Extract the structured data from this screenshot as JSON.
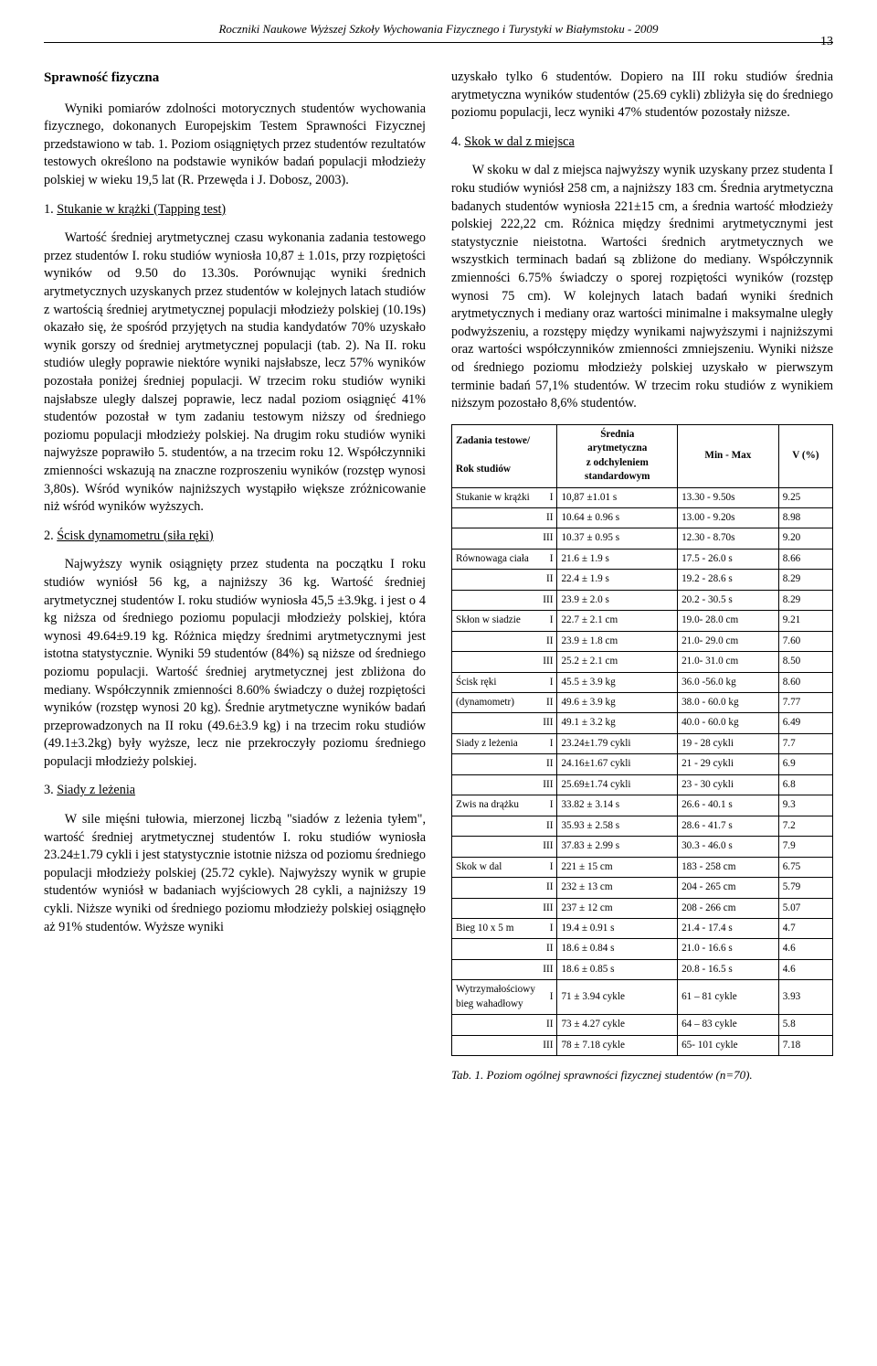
{
  "header": {
    "journal": "Roczniki Naukowe Wyższej Szkoły Wychowania Fizycznego i Turystyki w Białymstoku - 2009",
    "page_number": "13"
  },
  "left": {
    "title": "Sprawność fizyczna",
    "intro": "Wyniki pomiarów zdolności motorycznych studentów wychowania fizycznego, dokonanych Europejskim Testem Sprawności Fizycznej przedstawiono w tab. 1. Poziom osiągniętych przez studentów rezultatów testowych określono na podstawie wyników badań populacji młodzieży polskiej w wieku 19,5 lat (R. Przewęda i J. Dobosz, 2003).",
    "s1_num": "1.",
    "s1_title": "Stukanie w krążki (Tapping test)",
    "s1_body": "Wartość średniej arytmetycznej czasu wykonania zadania testowego przez studentów I. roku studiów wyniosła 10,87 ± 1.01s, przy rozpiętości wyników od 9.50 do 13.30s. Porównując wyniki średnich arytmetycznych uzyskanych przez studentów w kolejnych latach studiów z wartością średniej arytmetycznej populacji młodzieży polskiej (10.19s) okazało się, że spośród przyjętych na studia kandydatów 70% uzyskało wynik gorszy od średniej arytmetycznej populacji (tab. 2). Na II. roku studiów uległy poprawie niektóre wyniki najsłabsze, lecz 57% wyników pozostała poniżej średniej populacji. W trzecim roku studiów wyniki najsłabsze uległy dalszej poprawie, lecz nadal poziom osiągnięć 41% studentów pozostał w tym zadaniu testowym niższy od średniego poziomu populacji młodzieży polskiej. Na drugim roku studiów wyniki najwyższe poprawiło 5. studentów, a na trzecim roku 12. Współczynniki zmienności wskazują na znaczne rozproszeniu wyników (rozstęp wynosi 3,80s). Wśród wyników najniższych wystąpiło większe zróżnicowanie niż wśród wyników wyższych.",
    "s2_num": "2.",
    "s2_title": "Ścisk dynamometru (siła ręki)",
    "s2_body": "Najwyższy wynik osiągnięty przez studenta na początku I roku studiów wyniósł 56 kg, a najniższy 36 kg. Wartość średniej arytmetycznej studentów I. roku studiów wyniosła 45,5 ±3.9kg. i jest o 4 kg niższa od średniego poziomu populacji młodzieży polskiej, która wynosi 49.64±9.19 kg. Różnica między średnimi arytmetycznymi jest istotna statystycznie. Wyniki 59 studentów (84%) są niższe od średniego poziomu populacji. Wartość średniej arytmetycznej jest zbliżona do mediany. Współczynnik zmienności 8.60% świadczy o dużej rozpiętości wyników (rozstęp wynosi 20 kg). Średnie arytmetyczne wyników badań przeprowadzonych na II roku (49.6±3.9 kg) i na trzecim roku studiów (49.1±3.2kg) były wyższe, lecz nie przekroczyły poziomu średniego populacji młodzieży polskiej.",
    "s3_num": "3.",
    "s3_title": "Siady z leżenia",
    "s3_body": "W sile mięśni tułowia, mierzonej liczbą \"siadów z leżenia tyłem\", wartość średniej arytmetycznej studentów I. roku studiów wyniosła 23.24±1.79 cykli i jest statystycznie istotnie niższa od poziomu średniego populacji młodzieży polskiej (25.72 cykle). Najwyższy wynik w grupie studentów wyniósł w badaniach wyjściowych 28 cykli, a najniższy 19 cykli. Niższe wyniki od średniego poziomu młodzieży polskiej osiągnęło aż 91% studentów. Wyższe wyniki"
  },
  "right": {
    "cont": "uzyskało tylko 6 studentów. Dopiero na III roku studiów średnia arytmetyczna wyników studentów (25.69 cykli) zbliżyła się do średniego poziomu populacji, lecz wyniki 47% studentów pozostały niższe.",
    "s4_num": "4.",
    "s4_title": "Skok w dal z miejsca",
    "s4_body": "W skoku w dal z miejsca najwyższy wynik uzyskany przez studenta I roku studiów wyniósł 258 cm, a najniższy 183 cm. Średnia arytmetyczna badanych studentów wyniosła 221±15 cm, a średnia wartość młodzieży polskiej 222,22 cm. Różnica między średnimi arytmetycznymi jest statystycznie nieistotna. Wartości średnich arytmetycznych we wszystkich terminach badań są zbliżone do mediany. Współczynnik zmienności 6.75% świadczy o sporej rozpiętości wyników (rozstęp wynosi 75 cm). W kolejnych latach badań wyniki średnich arytmetycznych i mediany oraz wartości minimalne i maksymalne uległy podwyższeniu, a rozstępy między wynikami najwyższymi i najniższymi oraz wartości współczynników zmienności zmniejszeniu. Wyniki niższe od średniego poziomu młodzieży polskiej uzyskało w pierwszym terminie badań 57,1% studentów. W trzecim roku studiów z wynikiem niższym pozostało 8,6% studentów.",
    "table_caption": "Tab. 1. Poziom ogólnej sprawności fizycznej studentów (n=70)."
  },
  "table": {
    "head": {
      "c1a": "Zadania testowe/",
      "c1b": "Rok studiów",
      "c2a": "Średnia",
      "c2b": "arytmetyczna",
      "c2c": "z odchyleniem",
      "c2d": "standardowym",
      "c3": "Min - Max",
      "c4": "V (%)"
    },
    "rows": [
      {
        "g": "Stukanie w krążki",
        "y": "I",
        "m": "10,87 ±1.01 s",
        "mm": "13.30 - 9.50s",
        "v": "9.25"
      },
      {
        "g": "",
        "y": "II",
        "m": "10.64 ± 0.96 s",
        "mm": "13.00 - 9.20s",
        "v": "8.98"
      },
      {
        "g": "",
        "y": "III",
        "m": "10.37 ± 0.95 s",
        "mm": "12.30 - 8.70s",
        "v": "9.20"
      },
      {
        "g": "Równowaga ciała",
        "y": "I",
        "m": "21.6 ± 1.9 s",
        "mm": "17.5 - 26.0 s",
        "v": "8.66"
      },
      {
        "g": "",
        "y": "II",
        "m": "22.4 ± 1.9 s",
        "mm": "19.2 - 28.6 s",
        "v": "8.29"
      },
      {
        "g": "",
        "y": "III",
        "m": "23.9 ± 2.0 s",
        "mm": "20.2 - 30.5 s",
        "v": "8.29"
      },
      {
        "g": "Skłon w siadzie",
        "y": "I",
        "m": "22.7 ± 2.1 cm",
        "mm": "19.0- 28.0 cm",
        "v": "9.21"
      },
      {
        "g": "",
        "y": "II",
        "m": "23.9 ± 1.8 cm",
        "mm": "21.0- 29.0 cm",
        "v": "7.60"
      },
      {
        "g": "",
        "y": "III",
        "m": "25.2 ± 2.1 cm",
        "mm": "21.0- 31.0 cm",
        "v": "8.50"
      },
      {
        "g": "Ścisk ręki",
        "y": "I",
        "m": "45.5 ± 3.9 kg",
        "mm": "36.0 -56.0 kg",
        "v": "8.60"
      },
      {
        "g": "    (dynamometr)",
        "y": "II",
        "m": "49.6 ± 3.9 kg",
        "mm": "38.0 - 60.0 kg",
        "v": "7.77"
      },
      {
        "g": "",
        "y": "III",
        "m": "49.1 ± 3.2 kg",
        "mm": "40.0 - 60.0 kg",
        "v": "6.49"
      },
      {
        "g": "Siady z leżenia",
        "y": "I",
        "m": "23.24±1.79 cykli",
        "mm": "19 - 28 cykli",
        "v": "7.7"
      },
      {
        "g": "",
        "y": "II",
        "m": "24.16±1.67 cykli",
        "mm": "21 - 29 cykli",
        "v": "6.9"
      },
      {
        "g": "",
        "y": "III",
        "m": "25.69±1.74 cykli",
        "mm": "23 - 30 cykli",
        "v": "6.8"
      },
      {
        "g": "Zwis na drążku",
        "y": "I",
        "m": "33.82 ± 3.14 s",
        "mm": "26.6 - 40.1 s",
        "v": "9.3"
      },
      {
        "g": "",
        "y": "II",
        "m": "35.93 ± 2.58 s",
        "mm": "28.6 - 41.7 s",
        "v": "7.2"
      },
      {
        "g": "",
        "y": "III",
        "m": "37.83 ± 2.99 s",
        "mm": "30.3 - 46.0 s",
        "v": "7.9"
      },
      {
        "g": "Skok w dal",
        "y": "I",
        "m": "221 ± 15 cm",
        "mm": "183 - 258 cm",
        "v": "6.75"
      },
      {
        "g": "",
        "y": "II",
        "m": "232 ± 13 cm",
        "mm": "204 - 265 cm",
        "v": "5.79"
      },
      {
        "g": "",
        "y": "III",
        "m": "237 ± 12 cm",
        "mm": "208 - 266 cm",
        "v": "5.07"
      },
      {
        "g": "Bieg 10 x 5 m",
        "y": "I",
        "m": "19.4 ± 0.91 s",
        "mm": "21.4 - 17.4 s",
        "v": "4.7"
      },
      {
        "g": "",
        "y": "II",
        "m": "18.6 ± 0.84 s",
        "mm": "21.0 - 16.6 s",
        "v": "4.6"
      },
      {
        "g": "",
        "y": "III",
        "m": "18.6 ± 0.85 s",
        "mm": "20.8 - 16.5 s",
        "v": "4.6"
      },
      {
        "g": "Wytrzymałościowy bieg wahadłowy",
        "y": "I",
        "m": "71 ± 3.94 cykle",
        "mm": "61 – 81 cykle",
        "v": "3.93"
      },
      {
        "g": "",
        "y": "II",
        "m": "73 ± 4.27 cykle",
        "mm": "64 – 83 cykle",
        "v": "5.8"
      },
      {
        "g": "",
        "y": "III",
        "m": "78 ± 7.18 cykle",
        "mm": "65- 101 cykle",
        "v": "7.18"
      }
    ]
  }
}
